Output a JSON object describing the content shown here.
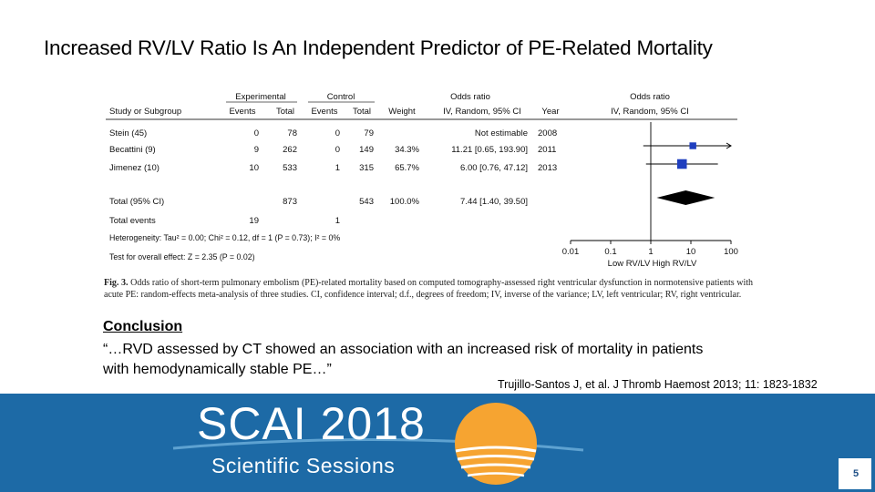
{
  "slide": {
    "title": "Increased RV/LV Ratio Is An Independent Predictor of PE-Related Mortality",
    "conclusion_heading": "Conclusion",
    "conclusion_text": "“…RVD assessed by CT showed an association with an increased risk of mortality in patients with hemodynamically stable PE…”",
    "citation": "Trujillo-Santos J, et al.  J Thromb Haemost 2013; 11: 1823-1832",
    "brand_name": "SCAI 2018",
    "brand_subtitle": "Scientific Sessions",
    "page_number": "5"
  },
  "chart_data": {
    "type": "forest",
    "header": {
      "experimental": "Experimental",
      "control": "Control",
      "odds_ratio": "Odds ratio",
      "study": "Study or Subgroup",
      "events": "Events",
      "total": "Total",
      "weight": "Weight",
      "method": "IV, Random, 95% CI",
      "year": "Year",
      "plot_odds_ratio": "Odds ratio",
      "plot_method": "IV, Random, 95% CI"
    },
    "studies": [
      {
        "name": "Stein (45)",
        "exp_events": "0",
        "exp_total": "78",
        "ctl_events": "0",
        "ctl_total": "79",
        "weight": "",
        "ci_text": "Not estimable",
        "year": "2008",
        "or": null,
        "lo": null,
        "hi": null,
        "weight_pct": 0
      },
      {
        "name": "Becattini (9)",
        "exp_events": "9",
        "exp_total": "262",
        "ctl_events": "0",
        "ctl_total": "149",
        "weight": "34.3%",
        "ci_text": "11.21 [0.65, 193.90]",
        "year": "2011",
        "or": 11.21,
        "lo": 0.65,
        "hi": 193.9,
        "weight_pct": 34.3
      },
      {
        "name": "Jimenez (10)",
        "exp_events": "10",
        "exp_total": "533",
        "ctl_events": "1",
        "ctl_total": "315",
        "weight": "65.7%",
        "ci_text": "6.00 [0.76, 47.12]",
        "year": "2013",
        "or": 6.0,
        "lo": 0.76,
        "hi": 47.12,
        "weight_pct": 65.7
      }
    ],
    "total": {
      "name": "Total (95% CI)",
      "exp_total": "873",
      "ctl_total": "543",
      "weight": "100.0%",
      "ci_text": "7.44 [1.40, 39.50]",
      "or": 7.44,
      "lo": 1.4,
      "hi": 39.5
    },
    "total_events": {
      "name": "Total events",
      "exp_events": "19",
      "ctl_events": "1"
    },
    "heterogeneity": "Heterogeneity: Tau² = 0.00; Chi² = 0.12, df = 1 (P = 0.73); I² = 0%",
    "overall_effect": "Test for overall effect: Z = 2.35 (P = 0.02)",
    "x_axis": {
      "scale": "log",
      "range": [
        0.01,
        100
      ],
      "ticks": [
        0.01,
        0.1,
        1,
        10,
        100
      ],
      "tick_labels": [
        "0.01",
        "0.1",
        "1",
        "10",
        "100"
      ]
    },
    "favours_left": "Low RV/LV",
    "favours_right": "High RV/LV",
    "colors": {
      "marker": "#1f3fbf",
      "diamond": "#000000"
    }
  },
  "caption": {
    "label": "Fig. 3.",
    "text": " Odds ratio of short-term pulmonary embolism (PE)-related mortality based on computed tomography-assessed right ventricular dysfunction in normotensive patients with acute PE: random-effects meta-analysis of three studies. CI, confidence interval; d.f., degrees of freedom; IV, inverse of the variance; LV, left ventricular; RV, right ventricular."
  }
}
